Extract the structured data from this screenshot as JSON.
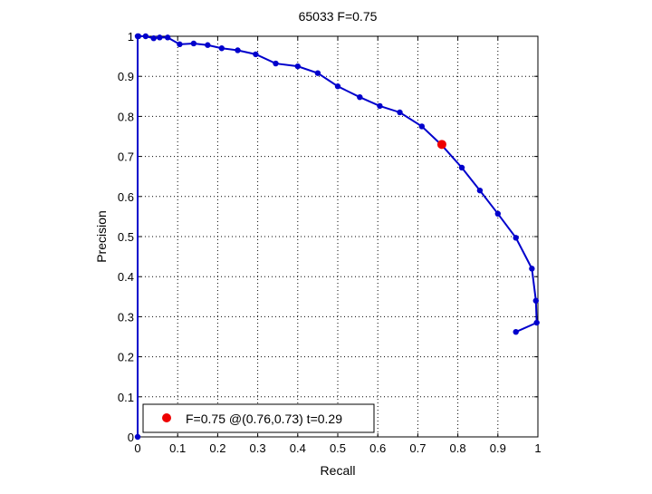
{
  "chart_data": {
    "type": "line",
    "title": "65033 F=0.75",
    "xlabel": "Recall",
    "ylabel": "Precision",
    "xlim": [
      0,
      1
    ],
    "ylim": [
      0,
      1
    ],
    "grid": true,
    "x_ticks": [
      "0",
      "0.1",
      "0.2",
      "0.3",
      "0.4",
      "0.5",
      "0.6",
      "0.7",
      "0.8",
      "0.9",
      "1"
    ],
    "y_ticks": [
      "0",
      "0.1",
      "0.2",
      "0.3",
      "0.4",
      "0.5",
      "0.6",
      "0.7",
      "0.8",
      "0.9",
      "1"
    ],
    "series": [
      {
        "color": "#0000cc",
        "points": [
          [
            0.0,
            0.0
          ],
          [
            0.0,
            1.0
          ],
          [
            0.002,
            1.0
          ],
          [
            0.02,
            1.0
          ],
          [
            0.04,
            0.995
          ],
          [
            0.055,
            0.997
          ],
          [
            0.075,
            0.997
          ],
          [
            0.105,
            0.98
          ],
          [
            0.14,
            0.982
          ],
          [
            0.175,
            0.978
          ],
          [
            0.21,
            0.97
          ],
          [
            0.25,
            0.965
          ],
          [
            0.295,
            0.955
          ],
          [
            0.345,
            0.932
          ],
          [
            0.4,
            0.925
          ],
          [
            0.45,
            0.908
          ],
          [
            0.5,
            0.875
          ],
          [
            0.555,
            0.848
          ],
          [
            0.605,
            0.826
          ],
          [
            0.655,
            0.81
          ],
          [
            0.71,
            0.775
          ],
          [
            0.76,
            0.728
          ],
          [
            0.81,
            0.672
          ],
          [
            0.855,
            0.615
          ],
          [
            0.9,
            0.557
          ],
          [
            0.945,
            0.497
          ],
          [
            0.985,
            0.42
          ],
          [
            0.995,
            0.34
          ],
          [
            0.997,
            0.285
          ],
          [
            0.945,
            0.262
          ]
        ]
      }
    ],
    "highlight": {
      "x": 0.76,
      "y": 0.73,
      "color": "#ee0000"
    },
    "legend": {
      "position": "bottom-left",
      "text": "F=0.75 @(0.76,0.73) t=0.29"
    }
  }
}
